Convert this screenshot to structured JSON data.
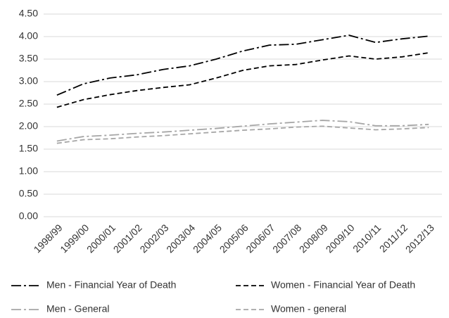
{
  "chart_data": {
    "type": "line",
    "categories": [
      "1998/99",
      "1999/00",
      "2000/01",
      "2001/02",
      "2002/03",
      "2003/04",
      "2004/05",
      "2005/06",
      "2006/07",
      "2007/08",
      "2008/09",
      "2009/10",
      "2010/11",
      "2011/12",
      "2012/13"
    ],
    "series": [
      {
        "name": "Men - Financial Year of Death",
        "color": "#000000",
        "dash": "dash-dot",
        "values": [
          2.7,
          2.95,
          3.08,
          3.15,
          3.27,
          3.35,
          3.5,
          3.68,
          3.81,
          3.83,
          3.93,
          4.03,
          3.87,
          3.95,
          4.01
        ]
      },
      {
        "name": "Women - Financial Year of Death",
        "color": "#000000",
        "dash": "dash",
        "values": [
          2.43,
          2.6,
          2.71,
          2.8,
          2.87,
          2.93,
          3.08,
          3.25,
          3.35,
          3.38,
          3.48,
          3.57,
          3.5,
          3.55,
          3.64
        ]
      },
      {
        "name": "Men - General",
        "color": "#a6a6a6",
        "dash": "dash-dot",
        "values": [
          1.68,
          1.78,
          1.81,
          1.85,
          1.88,
          1.92,
          1.96,
          2.01,
          2.06,
          2.1,
          2.14,
          2.11,
          2.02,
          2.02,
          2.05
        ]
      },
      {
        "name": "Women - general",
        "color": "#a6a6a6",
        "dash": "dash",
        "values": [
          1.63,
          1.71,
          1.73,
          1.77,
          1.8,
          1.84,
          1.88,
          1.92,
          1.95,
          1.99,
          2.01,
          1.97,
          1.93,
          1.95,
          1.98
        ]
      }
    ],
    "ylim": [
      0,
      4.5
    ],
    "yticks": [
      {
        "value": 0,
        "label": "0.00"
      },
      {
        "value": 0.5,
        "label": "0.50"
      },
      {
        "value": 1,
        "label": "1.00"
      },
      {
        "value": 1.5,
        "label": "1.50"
      },
      {
        "value": 2,
        "label": "2.00"
      },
      {
        "value": 2.5,
        "label": "2.50"
      },
      {
        "value": 3,
        "label": "3.00"
      },
      {
        "value": 3.5,
        "label": "3.50"
      },
      {
        "value": 4,
        "label": "4.00"
      },
      {
        "value": 4.5,
        "label": "4.50"
      }
    ],
    "grid": true,
    "legend": "bottom"
  }
}
